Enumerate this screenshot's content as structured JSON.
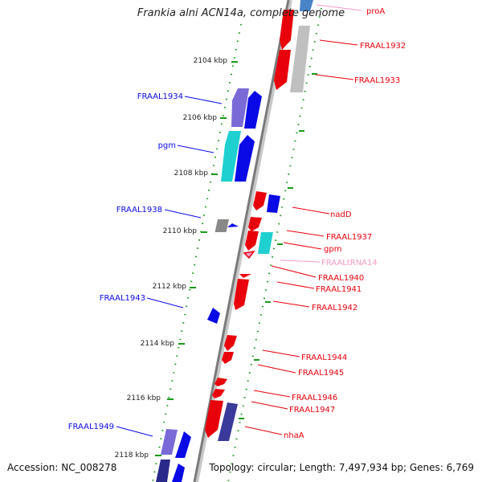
{
  "title": "Frankia alni ACN14a, complete genome",
  "footer": {
    "accession": "Accession: NC_008278",
    "topology": "Topology: circular; Length: 7,497,934 bp; Genes: 6,769"
  },
  "colors": {
    "forward_strand": "#e8000b",
    "reverse_strand": "#0a0ae6",
    "grey_gene": "#c0c0c0",
    "cyan_gene": "#1fd0d0",
    "purple_gene": "#7a6ad8",
    "trna": "#f39ac8",
    "axis": "#8a8a8a",
    "tick": "#1a9a1a"
  },
  "kbp_ticks": [
    "2104 kbp",
    "2106 kbp",
    "2108 kbp",
    "2110 kbp",
    "2112 kbp",
    "2114 kbp",
    "2116 kbp",
    "2118 kbp"
  ],
  "right_labels": [
    "proA",
    "FRAAL1932",
    "FRAAL1933",
    "nadD",
    "FRAAL1937",
    "gpm",
    "FRAALtRNA14",
    "FRAAL1940",
    "FRAAL1941",
    "FRAAL1942",
    "FRAAL1944",
    "FRAAL1945",
    "FRAAL1946",
    "FRAAL1947",
    "nhaA"
  ],
  "left_labels": [
    "FRAAL1934",
    "pgm",
    "FRAAL1938",
    "FRAAL1943",
    "FRAAL1949"
  ]
}
